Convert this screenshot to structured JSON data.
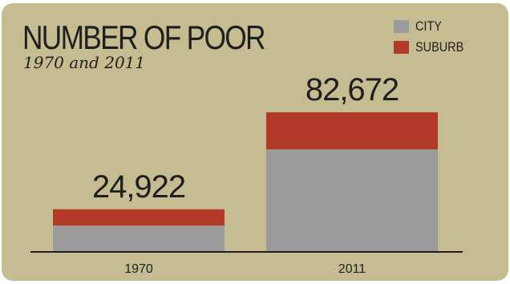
{
  "colors": {
    "background": "#c5bd91",
    "city": "#9b9b9b",
    "suburb": "#b33a26",
    "text": "#1f1f1f",
    "axis": "#1f1f1f"
  },
  "chart_data": {
    "type": "bar",
    "stacked": true,
    "title": "NUMBER OF POOR",
    "subtitle": "1970 and 2011",
    "categories": [
      "1970",
      "2011"
    ],
    "series": [
      {
        "name": "CITY",
        "values": [
          15200,
          60600
        ],
        "color": "#9b9b9b"
      },
      {
        "name": "SUBURB",
        "values": [
          9722,
          22072
        ],
        "color": "#b33a26"
      }
    ],
    "totals": [
      24922,
      82672
    ],
    "total_labels": [
      "24,922",
      "82,672"
    ],
    "ylim": [
      0,
      82672
    ],
    "legend_position": "top-right",
    "grid": false
  }
}
